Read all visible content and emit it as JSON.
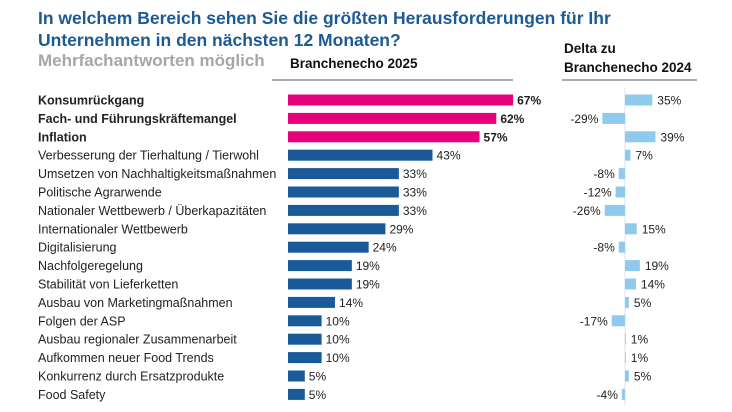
{
  "chart_data": {
    "type": "bar",
    "title": "In welchem Bereich sehen Sie die größten Herausforderungen für Ihr Unternehmen in den nächsten 12 Monaten?",
    "title_lines": [
      "In welchem Bereich sehen Sie die größten Herausforderungen für Ihr",
      "Unternehmen in den nächsten 12 Monaten?"
    ],
    "subtitle": "Mehrfachantworten möglich",
    "categories": [
      "Konsumrückgang",
      "Fach- und Führungskräftemangel",
      "Inflation",
      "Verbesserung der Tierhaltung / Tierwohl",
      "Umsetzen von Nachhaltigkeitsmaßnahmen",
      "Politische Agrarwende",
      "Nationaler Wettbewerb / Überkapazitäten",
      "Internationaler Wettbewerb",
      "Digitalisierung",
      "Nachfolgeregelung",
      "Stabilität von Lieferketten",
      "Ausbau von Marketingmaßnahmen",
      "Folgen der ASP",
      "Ausbau regionaler Zusammenarbeit",
      "Aufkommen neuer Food Trends",
      "Konkurrenz durch Ersatzprodukte",
      "Food Safety"
    ],
    "highlighted_top": 3,
    "series": [
      {
        "name": "Branchenecho 2025",
        "unit": "%",
        "values": [
          67,
          62,
          57,
          43,
          33,
          33,
          33,
          29,
          24,
          19,
          19,
          14,
          10,
          10,
          10,
          5,
          5
        ]
      },
      {
        "name": "Delta zu Branchenecho 2024",
        "name_lines": [
          "Delta zu",
          "Branchenecho 2024"
        ],
        "unit": "%",
        "values": [
          35,
          -29,
          39,
          7,
          -8,
          -12,
          -26,
          15,
          -8,
          19,
          14,
          5,
          -17,
          1,
          1,
          5,
          -4
        ]
      }
    ],
    "colors": {
      "highlight": "#e6007e",
      "main": "#1b5a99",
      "delta": "#8ec9ee",
      "title": "#1c5a96",
      "subtitle": "#a6a6a6"
    },
    "grid": false
  }
}
